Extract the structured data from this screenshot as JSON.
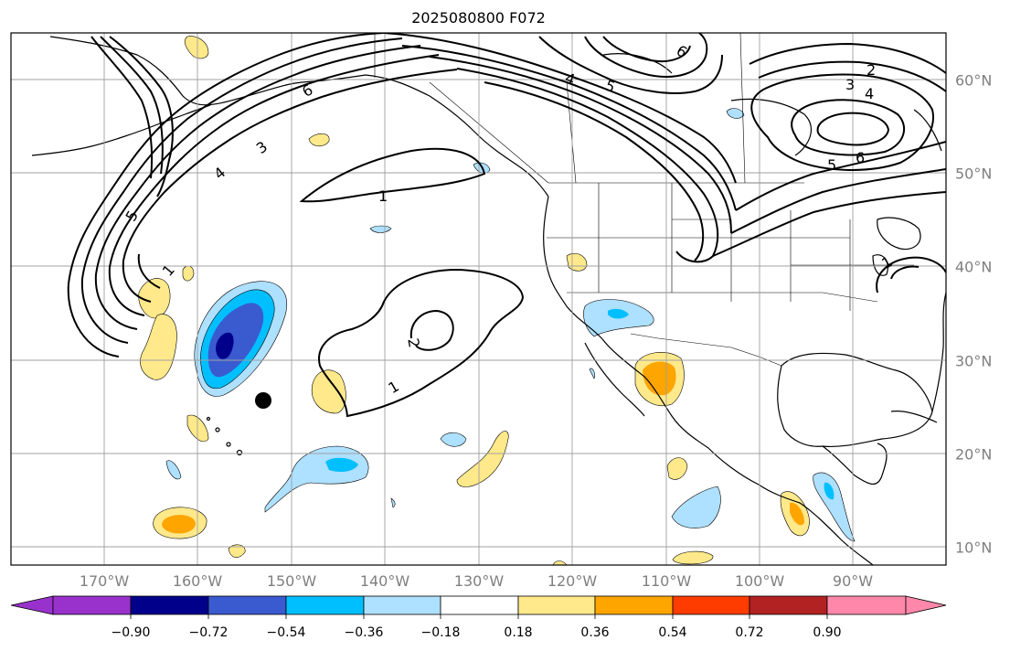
{
  "title": "2025080800 F072",
  "map": {
    "lon_ticks": [
      "170°W",
      "160°W",
      "150°W",
      "140°W",
      "130°W",
      "120°W",
      "110°W",
      "100°W",
      "90°W"
    ],
    "lat_ticks": [
      "60°N",
      "50°N",
      "40°N",
      "30°N",
      "20°N",
      "10°N"
    ],
    "contour_labels": [
      "1",
      "2",
      "3",
      "4",
      "5",
      "6"
    ],
    "colors": {
      "coastline": "#000000",
      "gridline": "#a0a0a0",
      "tick_label": "#7f7f7f",
      "contour": "#000000"
    }
  },
  "colorbar": {
    "labels": [
      "−0.90",
      "−0.72",
      "−0.54",
      "−0.36",
      "−0.18",
      "0.18",
      "0.36",
      "0.54",
      "0.72",
      "0.90"
    ],
    "colors": [
      "#9932cc",
      "#00008b",
      "#3a5bd0",
      "#00bfff",
      "#aee0ff",
      "#ffffff",
      "#ffe98a",
      "#ffa500",
      "#ff3c00",
      "#b22222",
      "#ff88aa"
    ]
  }
}
